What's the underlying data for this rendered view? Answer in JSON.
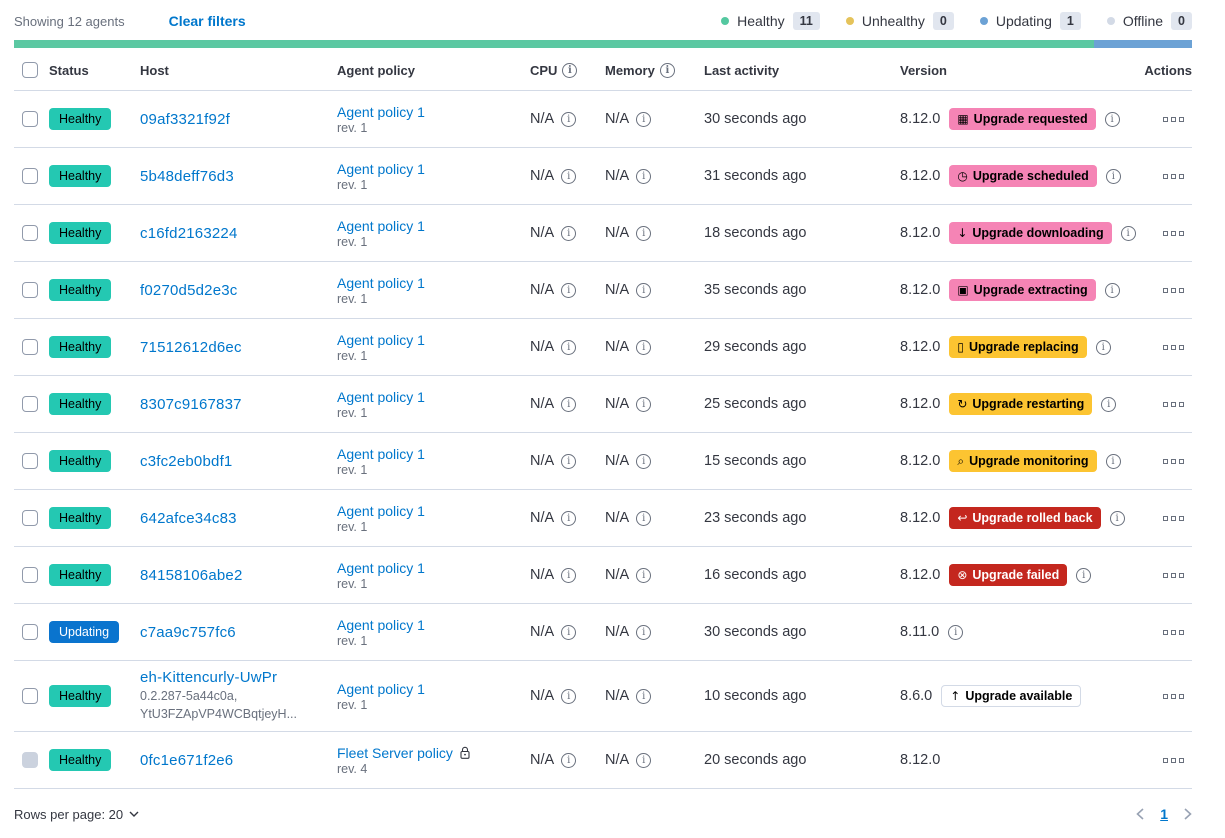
{
  "colors": {
    "text": "#343741",
    "subtext": "#69707D",
    "border": "#D3DAE6",
    "link": "#0077CC",
    "healthy": "#24C8B2",
    "updating": "#0A74CE",
    "pink": "#F584B5",
    "warning": "#FCC431",
    "danger": "#C4271E",
    "count-bg": "#E1E6EF",
    "bar-green": "#5BC8A2",
    "bar-blue": "#6CA2D5",
    "dot-healthy": "#54C8A0",
    "dot-unhealthy": "#E5C35A",
    "dot-updating": "#6CA2D5",
    "dot-offline": "#D3DAE6"
  },
  "toolbar": {
    "showing_text": "Showing 12 agents",
    "clear_filters_label": "Clear filters",
    "legend": [
      {
        "label": "Healthy",
        "count": "11",
        "dot_color": "#54C8A0"
      },
      {
        "label": "Unhealthy",
        "count": "0",
        "dot_color": "#E5C35A"
      },
      {
        "label": "Updating",
        "count": "1",
        "dot_color": "#6CA2D5"
      },
      {
        "label": "Offline",
        "count": "0",
        "dot_color": "#D3DAE6"
      }
    ]
  },
  "status_bar": {
    "segments": [
      {
        "status": "healthy",
        "color": "#5BC8A2",
        "fraction": 0.9167
      },
      {
        "status": "updating",
        "color": "#6CA2D5",
        "fraction": 0.0833
      }
    ]
  },
  "table": {
    "headers": {
      "status": "Status",
      "host": "Host",
      "policy": "Agent policy",
      "cpu": "CPU",
      "memory": "Memory",
      "last_activity": "Last activity",
      "version": "Version",
      "actions": "Actions"
    },
    "rows": [
      {
        "status": "Healthy",
        "status_type": "healthy",
        "host": "09af3321f92f",
        "host_sub": null,
        "policy": "Agent policy 1",
        "policy_rev": "rev. 1",
        "policy_locked": false,
        "cpu": "N/A",
        "memory": "N/A",
        "last_activity": "30 seconds ago",
        "version": "8.12.0",
        "upgrade_badge": {
          "label": "Upgrade requested",
          "icon_name": "calendar-icon",
          "glyph": "▦",
          "type": "pink"
        },
        "version_info": true,
        "checkbox_disabled": false
      },
      {
        "status": "Healthy",
        "status_type": "healthy",
        "host": "5b48deff76d3",
        "host_sub": null,
        "policy": "Agent policy 1",
        "policy_rev": "rev. 1",
        "policy_locked": false,
        "cpu": "N/A",
        "memory": "N/A",
        "last_activity": "31 seconds ago",
        "version": "8.12.0",
        "upgrade_badge": {
          "label": "Upgrade scheduled",
          "icon_name": "clock-icon",
          "glyph": "◷",
          "type": "pink"
        },
        "version_info": true,
        "checkbox_disabled": false
      },
      {
        "status": "Healthy",
        "status_type": "healthy",
        "host": "c16fd2163224",
        "host_sub": null,
        "policy": "Agent policy 1",
        "policy_rev": "rev. 1",
        "policy_locked": false,
        "cpu": "N/A",
        "memory": "N/A",
        "last_activity": "18 seconds ago",
        "version": "8.12.0",
        "upgrade_badge": {
          "label": "Upgrade downloading",
          "icon_name": "download-icon",
          "glyph": "↓",
          "type": "pink"
        },
        "version_info": true,
        "checkbox_disabled": false
      },
      {
        "status": "Healthy",
        "status_type": "healthy",
        "host": "f0270d5d2e3c",
        "host_sub": null,
        "policy": "Agent policy 1",
        "policy_rev": "rev. 1",
        "policy_locked": false,
        "cpu": "N/A",
        "memory": "N/A",
        "last_activity": "35 seconds ago",
        "version": "8.12.0",
        "upgrade_badge": {
          "label": "Upgrade extracting",
          "icon_name": "package-icon",
          "glyph": "▣",
          "type": "pink"
        },
        "version_info": true,
        "checkbox_disabled": false
      },
      {
        "status": "Healthy",
        "status_type": "healthy",
        "host": "71512612d6ec",
        "host_sub": null,
        "policy": "Agent policy 1",
        "policy_rev": "rev. 1",
        "policy_locked": false,
        "cpu": "N/A",
        "memory": "N/A",
        "last_activity": "29 seconds ago",
        "version": "8.12.0",
        "upgrade_badge": {
          "label": "Upgrade replacing",
          "icon_name": "document-icon",
          "glyph": "▯",
          "type": "warning"
        },
        "version_info": true,
        "checkbox_disabled": false
      },
      {
        "status": "Healthy",
        "status_type": "healthy",
        "host": "8307c9167837",
        "host_sub": null,
        "policy": "Agent policy 1",
        "policy_rev": "rev. 1",
        "policy_locked": false,
        "cpu": "N/A",
        "memory": "N/A",
        "last_activity": "25 seconds ago",
        "version": "8.12.0",
        "upgrade_badge": {
          "label": "Upgrade restarting",
          "icon_name": "refresh-icon",
          "glyph": "↻",
          "type": "warning"
        },
        "version_info": true,
        "checkbox_disabled": false
      },
      {
        "status": "Healthy",
        "status_type": "healthy",
        "host": "c3fc2eb0bdf1",
        "host_sub": null,
        "policy": "Agent policy 1",
        "policy_rev": "rev. 1",
        "policy_locked": false,
        "cpu": "N/A",
        "memory": "N/A",
        "last_activity": "15 seconds ago",
        "version": "8.12.0",
        "upgrade_badge": {
          "label": "Upgrade monitoring",
          "icon_name": "inspect-icon",
          "glyph": "⌕",
          "type": "warning"
        },
        "version_info": true,
        "checkbox_disabled": false
      },
      {
        "status": "Healthy",
        "status_type": "healthy",
        "host": "642afce34c83",
        "host_sub": null,
        "policy": "Agent policy 1",
        "policy_rev": "rev. 1",
        "policy_locked": false,
        "cpu": "N/A",
        "memory": "N/A",
        "last_activity": "23 seconds ago",
        "version": "8.12.0",
        "upgrade_badge": {
          "label": "Upgrade rolled back",
          "icon_name": "return-icon",
          "glyph": "↩",
          "type": "danger"
        },
        "version_info": true,
        "checkbox_disabled": false
      },
      {
        "status": "Healthy",
        "status_type": "healthy",
        "host": "84158106abe2",
        "host_sub": null,
        "policy": "Agent policy 1",
        "policy_rev": "rev. 1",
        "policy_locked": false,
        "cpu": "N/A",
        "memory": "N/A",
        "last_activity": "16 seconds ago",
        "version": "8.12.0",
        "upgrade_badge": {
          "label": "Upgrade failed",
          "icon_name": "error-icon",
          "glyph": "⊗",
          "type": "danger"
        },
        "version_info": true,
        "checkbox_disabled": false
      },
      {
        "status": "Updating",
        "status_type": "updating",
        "host": "c7aa9c757fc6",
        "host_sub": null,
        "policy": "Agent policy 1",
        "policy_rev": "rev. 1",
        "policy_locked": false,
        "cpu": "N/A",
        "memory": "N/A",
        "last_activity": "30 seconds ago",
        "version": "8.11.0",
        "upgrade_badge": null,
        "version_info": true,
        "checkbox_disabled": false
      },
      {
        "status": "Healthy",
        "status_type": "healthy",
        "host": "eh-Kittencurly-UwPr",
        "host_sub": [
          "0.2.287-5a44c0a,",
          "YtU3FZApVP4WCBqtjeyH..."
        ],
        "policy": "Agent policy 1",
        "policy_rev": "rev. 1",
        "policy_locked": false,
        "cpu": "N/A",
        "memory": "N/A",
        "last_activity": "10 seconds ago",
        "version": "8.6.0",
        "upgrade_badge": {
          "label": "Upgrade available",
          "icon_name": "arrow-up-icon",
          "glyph": "↑",
          "type": "hollow"
        },
        "version_info": false,
        "checkbox_disabled": false
      },
      {
        "status": "Healthy",
        "status_type": "healthy",
        "host": "0fc1e671f2e6",
        "host_sub": null,
        "policy": "Fleet Server policy",
        "policy_rev": "rev. 4",
        "policy_locked": true,
        "cpu": "N/A",
        "memory": "N/A",
        "last_activity": "20 seconds ago",
        "version": "8.12.0",
        "upgrade_badge": null,
        "version_info": false,
        "checkbox_disabled": true
      }
    ]
  },
  "footer": {
    "rows_per_page_label": "Rows per page: 20",
    "current_page": "1"
  }
}
